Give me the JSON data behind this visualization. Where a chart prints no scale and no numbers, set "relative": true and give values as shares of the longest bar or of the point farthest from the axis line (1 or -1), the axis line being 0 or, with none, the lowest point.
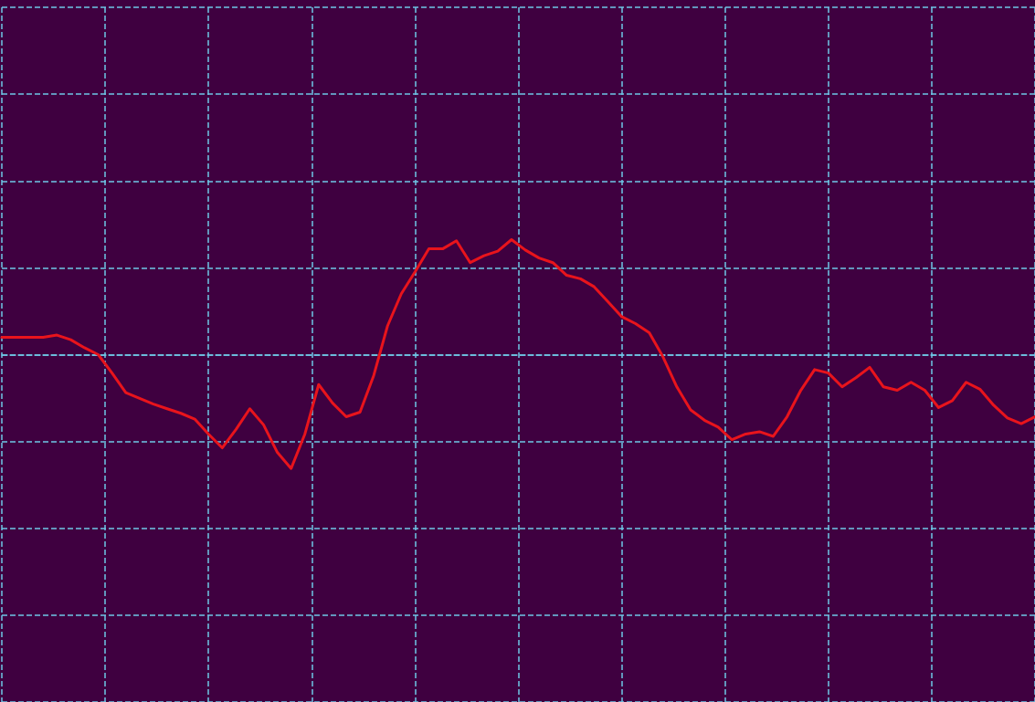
{
  "chart_data": {
    "type": "line",
    "relative": true,
    "grid": true,
    "marker": "none",
    "categories": [
      null,
      null,
      null,
      null,
      null,
      null,
      null,
      null,
      null,
      null,
      null,
      null,
      null,
      null,
      null,
      null,
      null,
      null,
      null,
      null,
      null,
      null,
      null,
      null,
      null,
      null,
      null,
      null,
      null,
      null,
      null,
      null,
      null,
      null,
      null,
      null,
      null,
      null,
      null,
      null,
      null,
      null,
      null,
      null,
      null,
      null,
      null,
      null,
      null,
      null,
      null,
      null,
      null,
      null,
      null,
      null,
      null,
      null,
      null,
      null,
      null,
      null,
      null,
      null,
      null,
      null,
      null,
      null,
      null,
      null,
      null,
      null,
      null,
      null,
      null,
      null
    ],
    "series": [
      {
        "color": "#e8141c",
        "values": [
          0.15,
          0.15,
          0.15,
          0.15,
          0.17,
          0.13,
          0.06,
          0.0,
          -0.16,
          -0.33,
          -0.38,
          -0.43,
          -0.47,
          -0.51,
          -0.56,
          -0.69,
          -0.81,
          -0.65,
          -0.47,
          -0.61,
          -0.85,
          -0.99,
          -0.69,
          -0.26,
          -0.42,
          -0.54,
          -0.5,
          -0.18,
          0.25,
          0.53,
          0.72,
          0.92,
          0.92,
          0.99,
          0.8,
          0.86,
          0.9,
          1.0,
          0.91,
          0.84,
          0.8,
          0.69,
          0.66,
          0.59,
          0.46,
          0.33,
          0.27,
          0.19,
          -0.02,
          -0.28,
          -0.48,
          -0.57,
          -0.63,
          -0.74,
          -0.69,
          -0.67,
          -0.71,
          -0.54,
          -0.31,
          -0.13,
          -0.16,
          -0.28,
          -0.2,
          -0.11,
          -0.28,
          -0.31,
          -0.24,
          -0.31,
          -0.46,
          -0.4,
          -0.24,
          -0.3,
          -0.44,
          -0.55,
          -0.6,
          -0.54
        ]
      }
    ]
  }
}
